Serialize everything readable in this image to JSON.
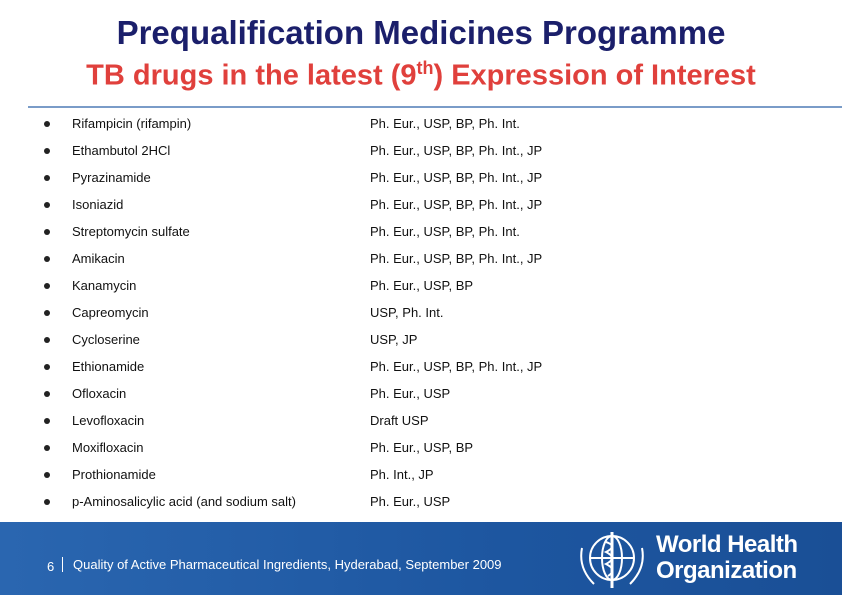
{
  "header": {
    "title": "Prequalification Medicines Programme",
    "subtitle": {
      "before": "TB drugs in the latest (9",
      "sup": "th",
      "after": ") Expression of Interest"
    }
  },
  "table": {
    "rows": [
      [
        "Rifampicin (rifampin)",
        "Ph. Eur., USP, BP, Ph. Int."
      ],
      [
        "Ethambutol 2HCl",
        "Ph. Eur., USP, BP, Ph. Int., JP"
      ],
      [
        "Pyrazinamide",
        "Ph. Eur., USP, BP, Ph. Int., JP"
      ],
      [
        "Isoniazid",
        "Ph. Eur., USP, BP, Ph. Int., JP"
      ],
      [
        "Streptomycin sulfate",
        "Ph. Eur., USP, BP, Ph. Int."
      ],
      [
        "Amikacin",
        "Ph. Eur., USP, BP, Ph. Int., JP"
      ],
      [
        "Kanamycin",
        "Ph. Eur., USP, BP"
      ],
      [
        "Capreomycin",
        "USP, Ph. Int."
      ],
      [
        "Cycloserine",
        "USP, JP"
      ],
      [
        "Ethionamide",
        "Ph. Eur., USP, BP, Ph. Int., JP"
      ],
      [
        "Ofloxacin",
        "Ph. Eur., USP"
      ],
      [
        "Levofloxacin",
        "Draft USP"
      ],
      [
        "Moxifloxacin",
        "Ph. Eur., USP, BP"
      ],
      [
        "Prothionamide",
        "Ph. Int., JP"
      ],
      [
        "p-Aminosalicylic acid (and sodium salt)",
        "Ph. Eur., USP"
      ]
    ]
  },
  "footer": {
    "page": "6",
    "text": "Quality of Active Pharmaceutical Ingredients, Hyderabad, September 2009",
    "logo": [
      "World Health",
      "Organization"
    ]
  }
}
